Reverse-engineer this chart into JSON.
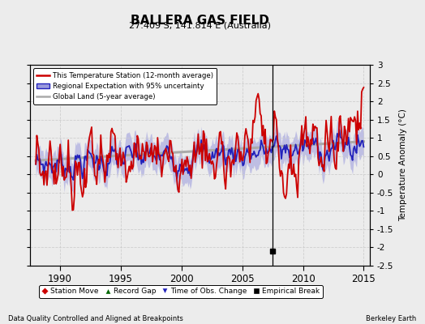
{
  "title": "BALLERA GAS FIELD",
  "subtitle": "27.409 S, 141.814 E (Australia)",
  "ylabel": "Temperature Anomaly (°C)",
  "footer_left": "Data Quality Controlled and Aligned at Breakpoints",
  "footer_right": "Berkeley Earth",
  "xlim": [
    1987.5,
    2015.5
  ],
  "ylim": [
    -2.5,
    3.0
  ],
  "yticks": [
    -2.5,
    -2,
    -1.5,
    -1,
    -0.5,
    0,
    0.5,
    1,
    1.5,
    2,
    2.5,
    3
  ],
  "xticks": [
    1990,
    1995,
    2000,
    2005,
    2010,
    2015
  ],
  "red_color": "#cc0000",
  "blue_color": "#2222bb",
  "blue_fill": "#9999dd",
  "gray_color": "#aaaaaa",
  "bg_color": "#ececec",
  "grid_color": "#cccccc",
  "empirical_break_x": 2007.5,
  "empirical_break_y": -2.1,
  "legend_items": [
    {
      "label": "This Temperature Station (12-month average)",
      "color": "#cc0000",
      "lw": 2
    },
    {
      "label": "Regional Expectation with 95% uncertainty",
      "color": "#2222bb",
      "lw": 1.5
    },
    {
      "label": "Global Land (5-year average)",
      "color": "#aaaaaa",
      "lw": 2
    }
  ],
  "marker_legend": [
    {
      "label": "Station Move",
      "color": "#cc0000",
      "marker": "D"
    },
    {
      "label": "Record Gap",
      "color": "#006600",
      "marker": "^"
    },
    {
      "label": "Time of Obs. Change",
      "color": "#2222bb",
      "marker": "v"
    },
    {
      "label": "Empirical Break",
      "color": "#000000",
      "marker": "s"
    }
  ]
}
